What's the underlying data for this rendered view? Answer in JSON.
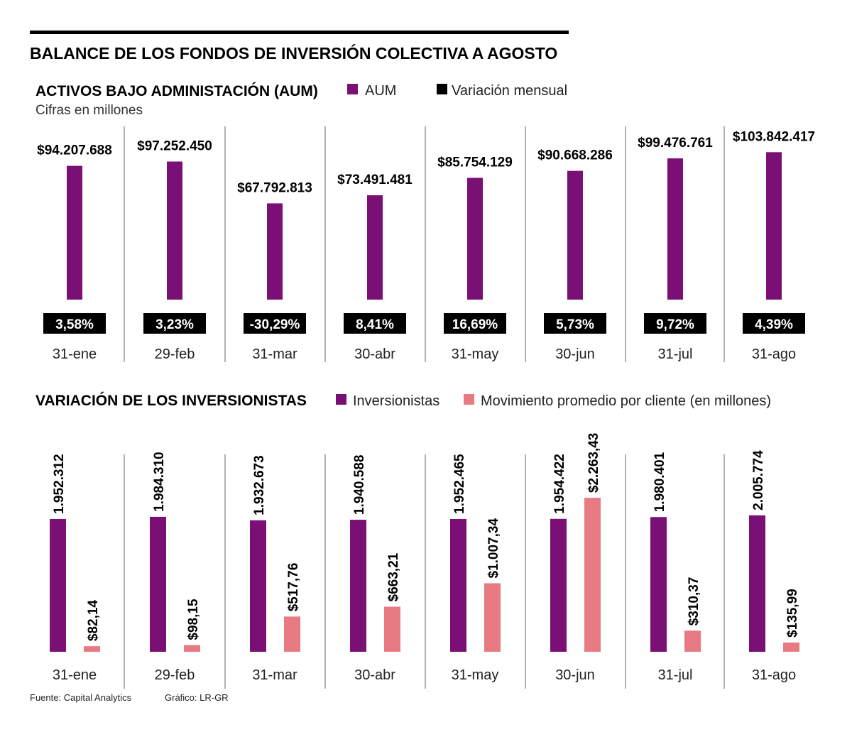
{
  "title": "BALANCE DE LOS FONDOS DE INVERSIÓN COLECTIVA A AGOSTO",
  "footer": {
    "source": "Fuente: Capital Analytics",
    "credit": "Gráfico: LR-GR"
  },
  "colors": {
    "purple": "#7a0f75",
    "pink": "#e87a84",
    "black": "#000000",
    "divider": "#666666"
  },
  "chart_data": [
    {
      "type": "bar",
      "title": "ACTIVOS BAJO ADMINISTACIÓN (AUM)",
      "subtitle": "Cifras en millones",
      "legend": [
        "AUM",
        "Variación mensual"
      ],
      "categories": [
        "31-ene",
        "29-feb",
        "31-mar",
        "30-abr",
        "31-may",
        "30-jun",
        "31-jul",
        "31-ago"
      ],
      "values": [
        94207688,
        97252450,
        67792813,
        73491481,
        85754129,
        90668286,
        99476761,
        103842417
      ],
      "value_labels": [
        "$94.207.688",
        "$97.252.450",
        "$67.792.813",
        "$73.491.481",
        "$85.754.129",
        "$90.668.286",
        "$99.476.761",
        "$103.842.417"
      ],
      "variation": [
        "3,58%",
        "3,23%",
        "-30,29%",
        "8,41%",
        "16,69%",
        "5,73%",
        "9,72%",
        "4,39%"
      ]
    },
    {
      "type": "bar",
      "title": "VARIACIÓN DE LOS INVERSIONISTAS",
      "legend": [
        "Inversionistas",
        "Movimiento promedio por cliente (en millones)"
      ],
      "categories": [
        "31-ene",
        "29-feb",
        "31-mar",
        "30-abr",
        "31-may",
        "30-jun",
        "31-jul",
        "31-ago"
      ],
      "series": [
        {
          "name": "Inversionistas",
          "values": [
            1952312,
            1984310,
            1932673,
            1940588,
            1952465,
            1954422,
            1980401,
            2005774
          ],
          "labels": [
            "1.952.312",
            "1.984.310",
            "1.932.673",
            "1.940.588",
            "1.952.465",
            "1.954.422",
            "1.980.401",
            "2.005.774"
          ]
        },
        {
          "name": "Movimiento promedio por cliente (en millones)",
          "values": [
            82.14,
            98.15,
            517.76,
            663.21,
            1007.34,
            2263.43,
            310.37,
            135.99
          ],
          "labels": [
            "$82,14",
            "$98,15",
            "$517,76",
            "$663,21",
            "$1.007,34",
            "$2.263,43",
            "$310,37",
            "$135,99"
          ]
        }
      ]
    }
  ]
}
